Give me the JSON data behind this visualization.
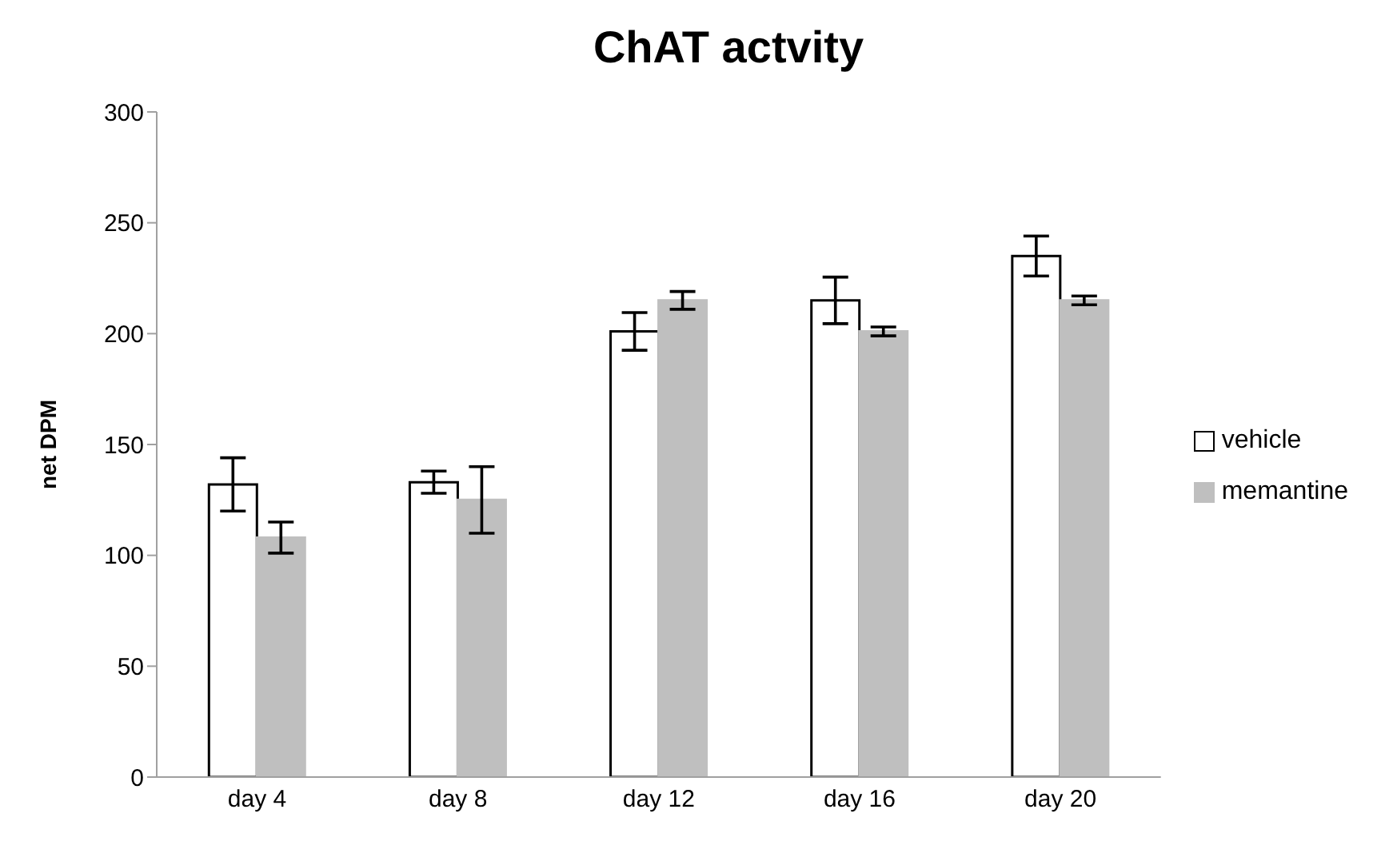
{
  "chart_data": {
    "type": "bar",
    "title": "ChAT actvity",
    "ylabel": "net DPM",
    "categories": [
      "day 4",
      "day 8",
      "day 12",
      "day 16",
      "day 20"
    ],
    "series": [
      {
        "name": "vehicle",
        "color": "#ffffff",
        "values": [
          132,
          133,
          201,
          215,
          235
        ],
        "errors": [
          12,
          5,
          8.5,
          10.5,
          9
        ]
      },
      {
        "name": "memantine",
        "color": "#bfbfbf",
        "values": [
          108,
          125,
          215,
          201,
          215
        ],
        "errors": [
          7,
          15,
          4,
          2,
          2
        ]
      }
    ],
    "ylim": [
      0,
      300
    ],
    "yticks": [
      0,
      50,
      100,
      150,
      200,
      250,
      300
    ],
    "grid": false,
    "legend": "right"
  }
}
